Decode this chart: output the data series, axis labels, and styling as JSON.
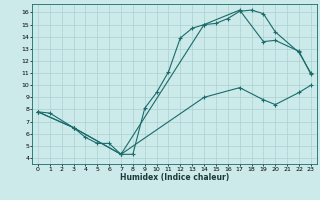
{
  "title": "",
  "xlabel": "Humidex (Indice chaleur)",
  "bg_color": "#cceaea",
  "grid_color": "#aacfcf",
  "line_color": "#1a6b6b",
  "xlim": [
    -0.5,
    23.5
  ],
  "ylim": [
    3.5,
    16.7
  ],
  "xticks": [
    0,
    1,
    2,
    3,
    4,
    5,
    6,
    7,
    8,
    9,
    10,
    11,
    12,
    13,
    14,
    15,
    16,
    17,
    18,
    19,
    20,
    21,
    22,
    23
  ],
  "yticks": [
    4,
    5,
    6,
    7,
    8,
    9,
    10,
    11,
    12,
    13,
    14,
    15,
    16
  ],
  "curve1_x": [
    0,
    1,
    3,
    4,
    5,
    6,
    7,
    8,
    9,
    10,
    11,
    12,
    13,
    14,
    15,
    16,
    17,
    18,
    19,
    20,
    22,
    23
  ],
  "curve1_y": [
    7.8,
    7.7,
    6.5,
    5.7,
    5.2,
    5.2,
    4.3,
    4.3,
    8.1,
    9.4,
    11.1,
    13.9,
    14.7,
    15.0,
    15.1,
    15.5,
    16.1,
    16.2,
    15.9,
    14.4,
    12.7,
    11.0
  ],
  "curve2_x": [
    0,
    3,
    7,
    14,
    17,
    19,
    20,
    22,
    23
  ],
  "curve2_y": [
    7.8,
    6.5,
    4.3,
    15.0,
    16.2,
    13.6,
    13.7,
    12.8,
    10.9
  ],
  "curve3_x": [
    0,
    3,
    7,
    14,
    17,
    19,
    20,
    22,
    23
  ],
  "curve3_y": [
    7.8,
    6.5,
    4.3,
    9.0,
    9.8,
    8.8,
    8.4,
    9.4,
    10.0
  ]
}
